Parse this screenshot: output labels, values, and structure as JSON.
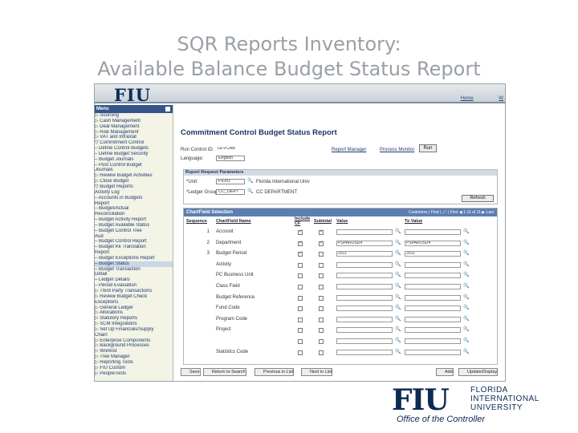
{
  "slide": {
    "title_line1": "SQR Reports Inventory:",
    "title_line2": "Available Balance Budget Status Report",
    "caption": "Office of the Controller"
  },
  "logo": {
    "mark": "FIU",
    "name_line1": "FLORIDA",
    "name_line2": "INTERNATIONAL",
    "name_line3": "UNIVERSITY"
  },
  "banner": {
    "logo": "FIU",
    "links": [
      "Home",
      "W"
    ]
  },
  "menu": {
    "title": "Menu",
    "items": [
      "▷ Sourcing",
      "▷ Cash Management",
      "▷ Deal Management",
      "▷ Risk Management",
      "▷ VAT and Intrastat",
      "▽ Commitment Control",
      "  – Define Control Budgets",
      "  – Define Budget Security",
      "  – Budget Journals",
      "  – Post Control Budget",
      "     Journals",
      "  ▷ Review Budget Activities",
      "  ▷ Close Budget",
      "  ▽ Budget Reports",
      "     Activity Log",
      "  – Accounts in Budgets",
      "     Report",
      "  – Budget/Actual",
      "     Reconciliation",
      "  – Budget Activity Report",
      "  – Budget Available Status",
      "  – Budget Control Tree",
      "     Aud",
      "  – Budget Control Report",
      "  – Budget Kk Translation",
      "     Report",
      "  – Budget Exceptions Report",
      "  – Budget Status",
      "  – Budget Transaction",
      "     Detail",
      "  – Ledger Details",
      "  – Period Evaluation",
      "  ▷ Third Party Transactions",
      "  ▷ Review Budget Check",
      "     Exceptions",
      "▷ General Ledger",
      "▷ Allocations",
      "▷ Statutory Reports",
      "▷ SCM Integrations",
      "▷ Set Up Financials/Supply",
      "     Chain",
      "▷ Enterprise Components",
      "▷ Background Processes",
      "▷ Worklist",
      "▷ Tree Manager",
      "▷ Reporting Tools",
      "▷ FIU Custom",
      "▷ PeopleTools"
    ],
    "highlight_index": 27
  },
  "form": {
    "page_title": "Commitment Control Budget Status Report",
    "run_control_label": "Run Control ID:",
    "run_control_value": "GLVCAB",
    "report_manager": "Report Manager",
    "process_monitor": "Process Monitor",
    "run_button": "Run",
    "language_label": "Language:",
    "language_value": "English",
    "report_params_title": "Report Request Parameters",
    "unit_label": "*Unit:",
    "unit_value": "FIU01",
    "unit_desc": "Florida International Univ",
    "ledger_label": "*Ledger Group:",
    "ledger_value": "CC_DEPT",
    "ledger_desc": "CC DEPARTMENT",
    "refresh_button": "Refresh",
    "grid_title": "ChartField Selection",
    "grid_nav": "Customize | Find | 🔗 | First ◀ 1-11 of 11 ▶ Last",
    "col_seq": "Sequence",
    "col_cf": "ChartField Name",
    "col_include": "Include CF",
    "col_subtotal": "Subtotal",
    "col_value": "Value",
    "col_to_value": "To Value"
  },
  "grid_rows": [
    {
      "seq": "1",
      "cf": "Account",
      "include": true,
      "subtotal": true,
      "value": "",
      "to_value": ""
    },
    {
      "seq": "2",
      "cf": "Department",
      "include": true,
      "subtotal": true,
      "value": "PSPAROSD4",
      "to_value": "PSPAROSD4"
    },
    {
      "seq": "3",
      "cf": "Budget Period",
      "include": true,
      "subtotal": false,
      "value": "2011",
      "to_value": "2011"
    },
    {
      "seq": "",
      "cf": "Activity",
      "include": false,
      "subtotal": false,
      "value": "",
      "to_value": ""
    },
    {
      "seq": "",
      "cf": "PC Business Unit",
      "include": false,
      "subtotal": false,
      "value": "",
      "to_value": ""
    },
    {
      "seq": "",
      "cf": "Class Field",
      "include": false,
      "subtotal": false,
      "value": "",
      "to_value": ""
    },
    {
      "seq": "",
      "cf": "Budget Reference",
      "include": false,
      "subtotal": false,
      "value": "",
      "to_value": ""
    },
    {
      "seq": "",
      "cf": "Fund Code",
      "include": false,
      "subtotal": false,
      "value": "",
      "to_value": ""
    },
    {
      "seq": "",
      "cf": "Program Code",
      "include": false,
      "subtotal": false,
      "value": "",
      "to_value": ""
    },
    {
      "seq": "",
      "cf": "Project",
      "include": false,
      "subtotal": false,
      "value": "",
      "to_value": ""
    },
    {
      "seq": "",
      "cf": "",
      "include": false,
      "subtotal": false,
      "value": "",
      "to_value": ""
    },
    {
      "seq": "",
      "cf": "Statistics Code",
      "include": false,
      "subtotal": false,
      "value": "",
      "to_value": ""
    }
  ],
  "bottom_buttons": {
    "save": "Save",
    "return": "Return to Search",
    "prev": "Previous in List",
    "next": "Next in List",
    "add": "Add",
    "update": "Update/Display"
  }
}
